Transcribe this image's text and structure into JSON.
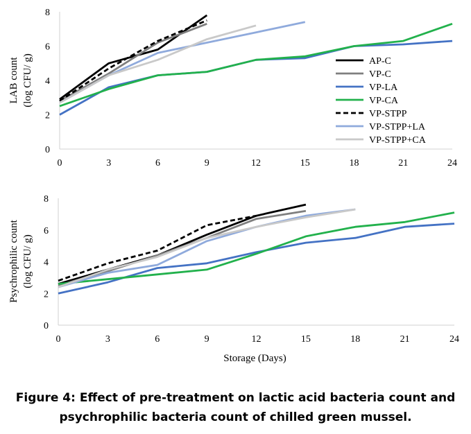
{
  "caption": {
    "line1": "Figure 4: Effect of pre-treatment on lactic acid bacteria count and",
    "line2": "psychrophilic bacteria count of chilled green mussel."
  },
  "colors": {
    "AP-C": "#000000",
    "VP-C": "#7f7f7f",
    "VP-LA": "#4472c4",
    "VP-CA": "#22b14c",
    "VP-STPP": "#000000",
    "VP-STPP+LA": "#8faadc",
    "VP-STPP+CA": "#c9c9c9"
  },
  "chart_data": [
    {
      "type": "line",
      "title": "",
      "xlabel": "",
      "ylabel_lines": [
        "LAB count",
        "(log CFU/ g)"
      ],
      "x_ticks": [
        0,
        3,
        6,
        9,
        12,
        15,
        18,
        21,
        24
      ],
      "y_ticks": [
        0,
        2,
        4,
        6,
        8
      ],
      "xlim": [
        0,
        24
      ],
      "ylim": [
        0,
        8
      ],
      "legend": "right",
      "series": [
        {
          "name": "AP-C",
          "style": "solid",
          "x": [
            0,
            3,
            6,
            9
          ],
          "y": [
            2.9,
            5.0,
            5.8,
            7.8
          ]
        },
        {
          "name": "VP-C",
          "style": "solid",
          "x": [
            0,
            3,
            6,
            9
          ],
          "y": [
            2.8,
            4.4,
            6.2,
            7.3
          ]
        },
        {
          "name": "VP-LA",
          "style": "solid",
          "x": [
            0,
            3,
            6,
            9,
            12,
            15,
            18,
            21,
            24
          ],
          "y": [
            2.0,
            3.6,
            4.3,
            4.5,
            5.2,
            5.3,
            6.0,
            6.1,
            6.3
          ]
        },
        {
          "name": "VP-CA",
          "style": "solid",
          "x": [
            0,
            3,
            6,
            9,
            12,
            15,
            18,
            21,
            24
          ],
          "y": [
            2.5,
            3.5,
            4.3,
            4.5,
            5.2,
            5.4,
            6.0,
            6.3,
            7.3
          ]
        },
        {
          "name": "VP-STPP",
          "style": "dashed",
          "x": [
            0,
            3,
            6,
            9
          ],
          "y": [
            2.8,
            4.7,
            6.3,
            7.5
          ]
        },
        {
          "name": "VP-STPP+LA",
          "style": "solid",
          "x": [
            0,
            3,
            6,
            9,
            12,
            15
          ],
          "y": [
            2.7,
            4.3,
            5.6,
            6.2,
            6.8,
            7.4
          ]
        },
        {
          "name": "VP-STPP+CA",
          "style": "solid",
          "x": [
            0,
            3,
            6,
            9,
            12
          ],
          "y": [
            2.7,
            4.3,
            5.2,
            6.4,
            7.2
          ]
        }
      ]
    },
    {
      "type": "line",
      "title": "",
      "xlabel": "Storage (Days)",
      "ylabel_lines": [
        "Psychrophilic count",
        "(log CFU/ g)"
      ],
      "x_ticks": [
        0,
        3,
        6,
        9,
        12,
        15,
        18,
        21,
        24
      ],
      "y_ticks": [
        0,
        2,
        4,
        6,
        8
      ],
      "xlim": [
        0,
        24
      ],
      "ylim": [
        0,
        8
      ],
      "series": [
        {
          "name": "AP-C",
          "style": "solid",
          "x": [
            0,
            3,
            6,
            9,
            12,
            15
          ],
          "y": [
            2.6,
            3.5,
            4.4,
            5.7,
            6.9,
            7.6
          ]
        },
        {
          "name": "VP-C",
          "style": "solid",
          "x": [
            0,
            3,
            6,
            9,
            12,
            15
          ],
          "y": [
            2.5,
            3.4,
            4.4,
            5.5,
            6.7,
            7.2
          ]
        },
        {
          "name": "VP-LA",
          "style": "solid",
          "x": [
            0,
            3,
            6,
            9,
            12,
            15,
            18,
            21,
            24
          ],
          "y": [
            2.0,
            2.7,
            3.6,
            3.9,
            4.6,
            5.2,
            5.5,
            6.2,
            6.4
          ]
        },
        {
          "name": "VP-CA",
          "style": "solid",
          "x": [
            0,
            3,
            6,
            9,
            12,
            15,
            18,
            21,
            24
          ],
          "y": [
            2.6,
            2.9,
            3.2,
            3.5,
            4.5,
            5.6,
            6.2,
            6.5,
            7.1
          ]
        },
        {
          "name": "VP-STPP",
          "style": "dashed",
          "x": [
            0,
            3,
            6,
            9,
            12
          ],
          "y": [
            2.8,
            3.9,
            4.7,
            6.3,
            6.9
          ]
        },
        {
          "name": "VP-STPP+LA",
          "style": "solid",
          "x": [
            0,
            3,
            6,
            9,
            12,
            15,
            18
          ],
          "y": [
            2.4,
            3.3,
            3.8,
            5.3,
            6.2,
            6.9,
            7.3
          ]
        },
        {
          "name": "VP-STPP+CA",
          "style": "solid",
          "x": [
            0,
            3,
            6,
            9,
            12,
            15,
            18
          ],
          "y": [
            2.4,
            3.5,
            4.3,
            5.5,
            6.2,
            6.8,
            7.3
          ]
        }
      ]
    }
  ]
}
